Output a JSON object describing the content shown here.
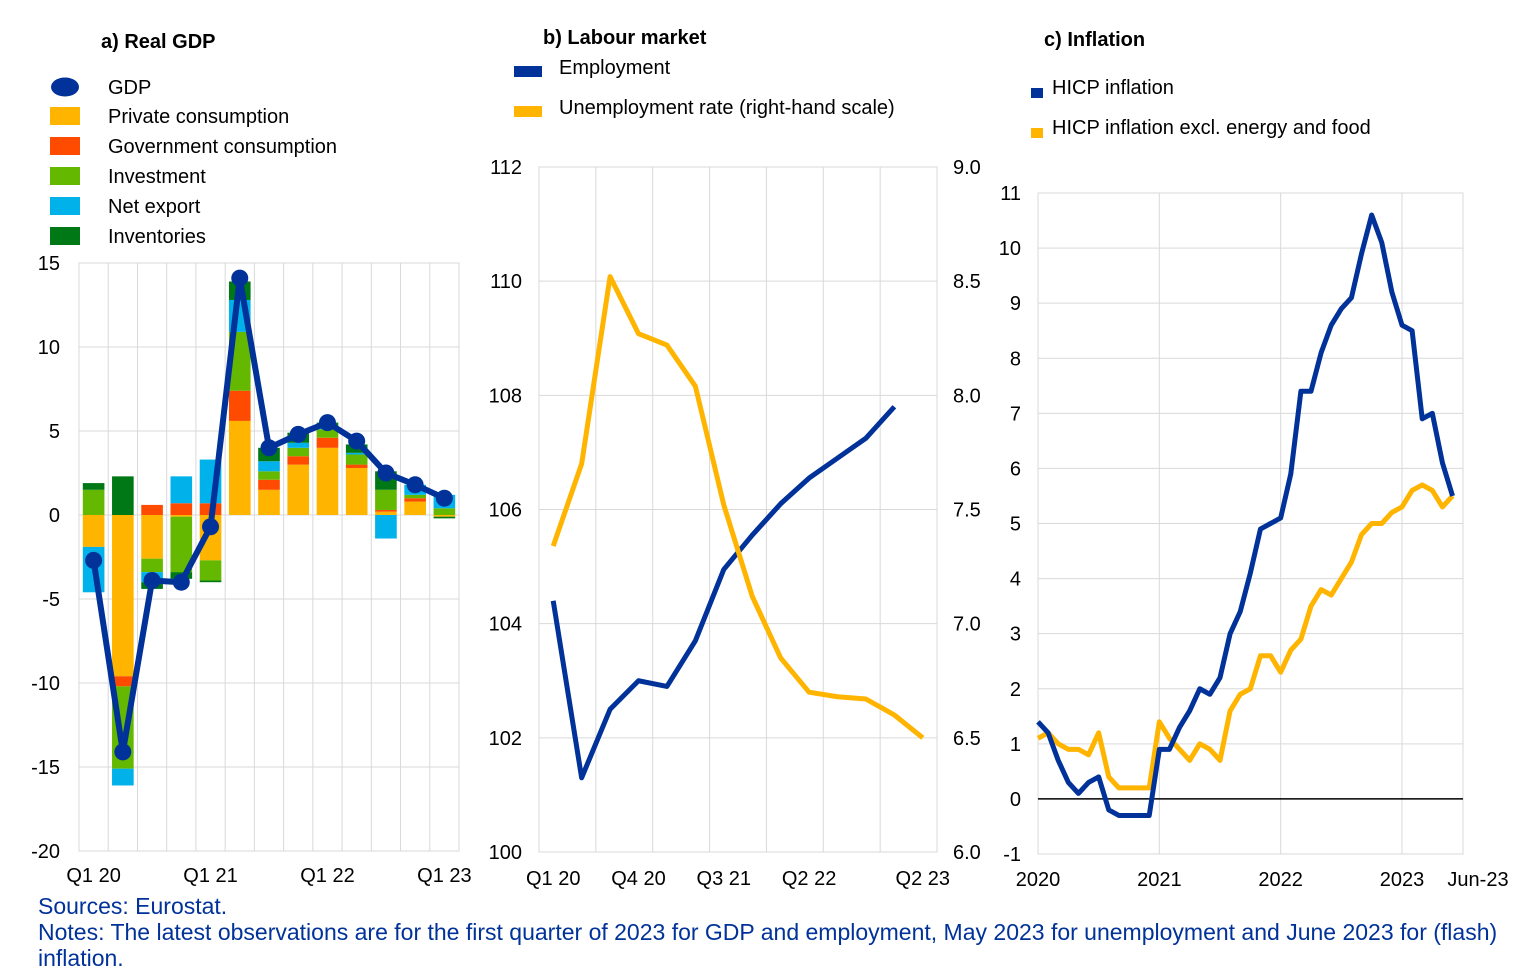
{
  "colors": {
    "blue": "#003299",
    "yellow": "#FFB400",
    "orange": "#FF4B00",
    "lightgreen": "#65B800",
    "cyan": "#00B1EA",
    "darkgreen": "#007816",
    "grid": "#d9d9d9"
  },
  "footer": {
    "sources": "Sources: Eurostat.",
    "notes": "Notes: The latest observations are for the first quarter of 2023 for GDP and employment, May 2023 for unemployment and June 2023 for (flash) inflation."
  },
  "chart_data": [
    {
      "type": "bar",
      "title": "a) Real GDP",
      "legend_position": "top-left",
      "ylim": [
        -20,
        15
      ],
      "yticks": [
        "15",
        "10",
        "5",
        "0",
        "-5",
        "-10",
        "-15",
        "-20"
      ],
      "xtick_labels": [
        "Q1 20",
        "Q1 21",
        "Q1 22",
        "Q1 23"
      ],
      "xtick_positions": [
        0,
        4,
        8,
        12
      ],
      "categories": [
        "Q1 20",
        "Q2 20",
        "Q3 20",
        "Q4 20",
        "Q1 21",
        "Q2 21",
        "Q3 21",
        "Q4 21",
        "Q1 22",
        "Q2 22",
        "Q3 22",
        "Q4 22",
        "Q1 23"
      ],
      "stacked": true,
      "grid": true,
      "series": [
        {
          "name": "Private consumption",
          "color": "#FFB400",
          "values": [
            -1.9,
            -9.6,
            -2.6,
            -0.1,
            -2.7,
            5.6,
            1.5,
            3.0,
            4.0,
            2.8,
            0.2,
            0.8,
            -0.1
          ]
        },
        {
          "name": "Government consumption",
          "color": "#FF4B00",
          "values": [
            0.0,
            -0.6,
            0.6,
            0.7,
            0.7,
            1.8,
            0.6,
            0.5,
            0.6,
            0.2,
            0.1,
            0.2,
            0.0
          ]
        },
        {
          "name": "Investment",
          "color": "#65B800",
          "values": [
            1.5,
            -4.9,
            -0.8,
            -3.3,
            -1.2,
            3.5,
            0.5,
            0.5,
            0.5,
            0.6,
            1.2,
            0.2,
            0.4
          ]
        },
        {
          "name": "Net export",
          "color": "#00B1EA",
          "values": [
            -2.7,
            -1.0,
            -0.6,
            1.6,
            2.6,
            1.9,
            0.6,
            0.3,
            0.1,
            0.1,
            -1.4,
            0.6,
            0.8
          ]
        },
        {
          "name": "Inventories",
          "color": "#007816",
          "values": [
            0.4,
            2.3,
            -0.4,
            -0.4,
            -0.1,
            1.1,
            0.8,
            0.6,
            0.3,
            0.5,
            1.1,
            0.0,
            -0.1
          ]
        }
      ],
      "line": {
        "name": "GDP",
        "color": "#003299",
        "values": [
          -2.7,
          -14.1,
          -3.9,
          -4.0,
          -0.7,
          14.1,
          4.0,
          4.8,
          5.5,
          4.4,
          2.5,
          1.8,
          1.0
        ]
      }
    },
    {
      "type": "line",
      "title": "b) Labour market",
      "legend_position": "top-left",
      "ylim_left": [
        100,
        112
      ],
      "yticks_left": [
        "100",
        "102",
        "104",
        "106",
        "108",
        "110",
        "112"
      ],
      "ylim_right": [
        6.0,
        9.0
      ],
      "yticks_right": [
        "6.0",
        "6.5",
        "7.0",
        "7.5",
        "8.0",
        "8.5",
        "9.0"
      ],
      "xtick_labels": [
        "Q1 20",
        "Q4 20",
        "Q3 21",
        "Q2 22",
        "Q2 23"
      ],
      "grid": true,
      "series": [
        {
          "name": "Employment",
          "axis": "left",
          "color": "#003299",
          "x": [
            "Q1 20",
            "Q2 20",
            "Q3 20",
            "Q4 20",
            "Q1 21",
            "Q2 21",
            "Q3 21",
            "Q4 21",
            "Q1 22",
            "Q2 22",
            "Q3 22",
            "Q4 22",
            "Q1 23"
          ],
          "values": [
            104.4,
            101.3,
            102.5,
            103.0,
            102.9,
            103.7,
            104.95,
            105.55,
            106.1,
            106.55,
            106.9,
            107.25,
            107.8
          ]
        },
        {
          "name": "Unemployment rate (right-hand scale)",
          "axis": "right",
          "color": "#FFB400",
          "x": [
            "Q1 20",
            "Q2 20",
            "Q3 20",
            "Q4 20",
            "Q1 21",
            "Q2 21",
            "Q3 21",
            "Q4 21",
            "Q1 22",
            "Q2 22",
            "Q3 22",
            "Q4 22",
            "Q1 23",
            "May 23"
          ],
          "values": [
            7.34,
            7.7,
            8.52,
            8.27,
            8.22,
            8.04,
            7.52,
            7.12,
            6.85,
            6.7,
            6.68,
            6.67,
            6.6,
            6.5
          ]
        }
      ]
    },
    {
      "type": "line",
      "title": "c) Inflation",
      "legend_position": "top-left",
      "ylim": [
        -1,
        11
      ],
      "yticks": [
        "-1",
        "0",
        "1",
        "2",
        "3",
        "4",
        "5",
        "6",
        "7",
        "8",
        "9",
        "10",
        "11"
      ],
      "xtick_labels": [
        "2020",
        "2021",
        "2022",
        "2023",
        "Jun-23"
      ],
      "grid": true,
      "series": [
        {
          "name": "HICP inflation",
          "color": "#003299",
          "x_start": "Jan-20",
          "values": [
            1.4,
            1.2,
            0.7,
            0.3,
            0.1,
            0.3,
            0.4,
            -0.2,
            -0.3,
            -0.3,
            -0.3,
            -0.3,
            0.9,
            0.9,
            1.3,
            1.6,
            2.0,
            1.9,
            2.2,
            3.0,
            3.4,
            4.1,
            4.9,
            5.0,
            5.1,
            5.9,
            7.4,
            7.4,
            8.1,
            8.6,
            8.9,
            9.1,
            9.9,
            10.6,
            10.1,
            9.2,
            8.6,
            8.5,
            6.9,
            7.0,
            6.1,
            5.5
          ]
        },
        {
          "name": "HICP inflation excl. energy and food",
          "color": "#FFB400",
          "x_start": "Jan-20",
          "values": [
            1.1,
            1.2,
            1.0,
            0.9,
            0.9,
            0.8,
            1.2,
            0.4,
            0.2,
            0.2,
            0.2,
            0.2,
            1.4,
            1.1,
            0.9,
            0.7,
            1.0,
            0.9,
            0.7,
            1.6,
            1.9,
            2.0,
            2.6,
            2.6,
            2.3,
            2.7,
            2.9,
            3.5,
            3.8,
            3.7,
            4.0,
            4.3,
            4.8,
            5.0,
            5.0,
            5.2,
            5.3,
            5.6,
            5.7,
            5.6,
            5.3,
            5.5
          ]
        }
      ]
    }
  ]
}
